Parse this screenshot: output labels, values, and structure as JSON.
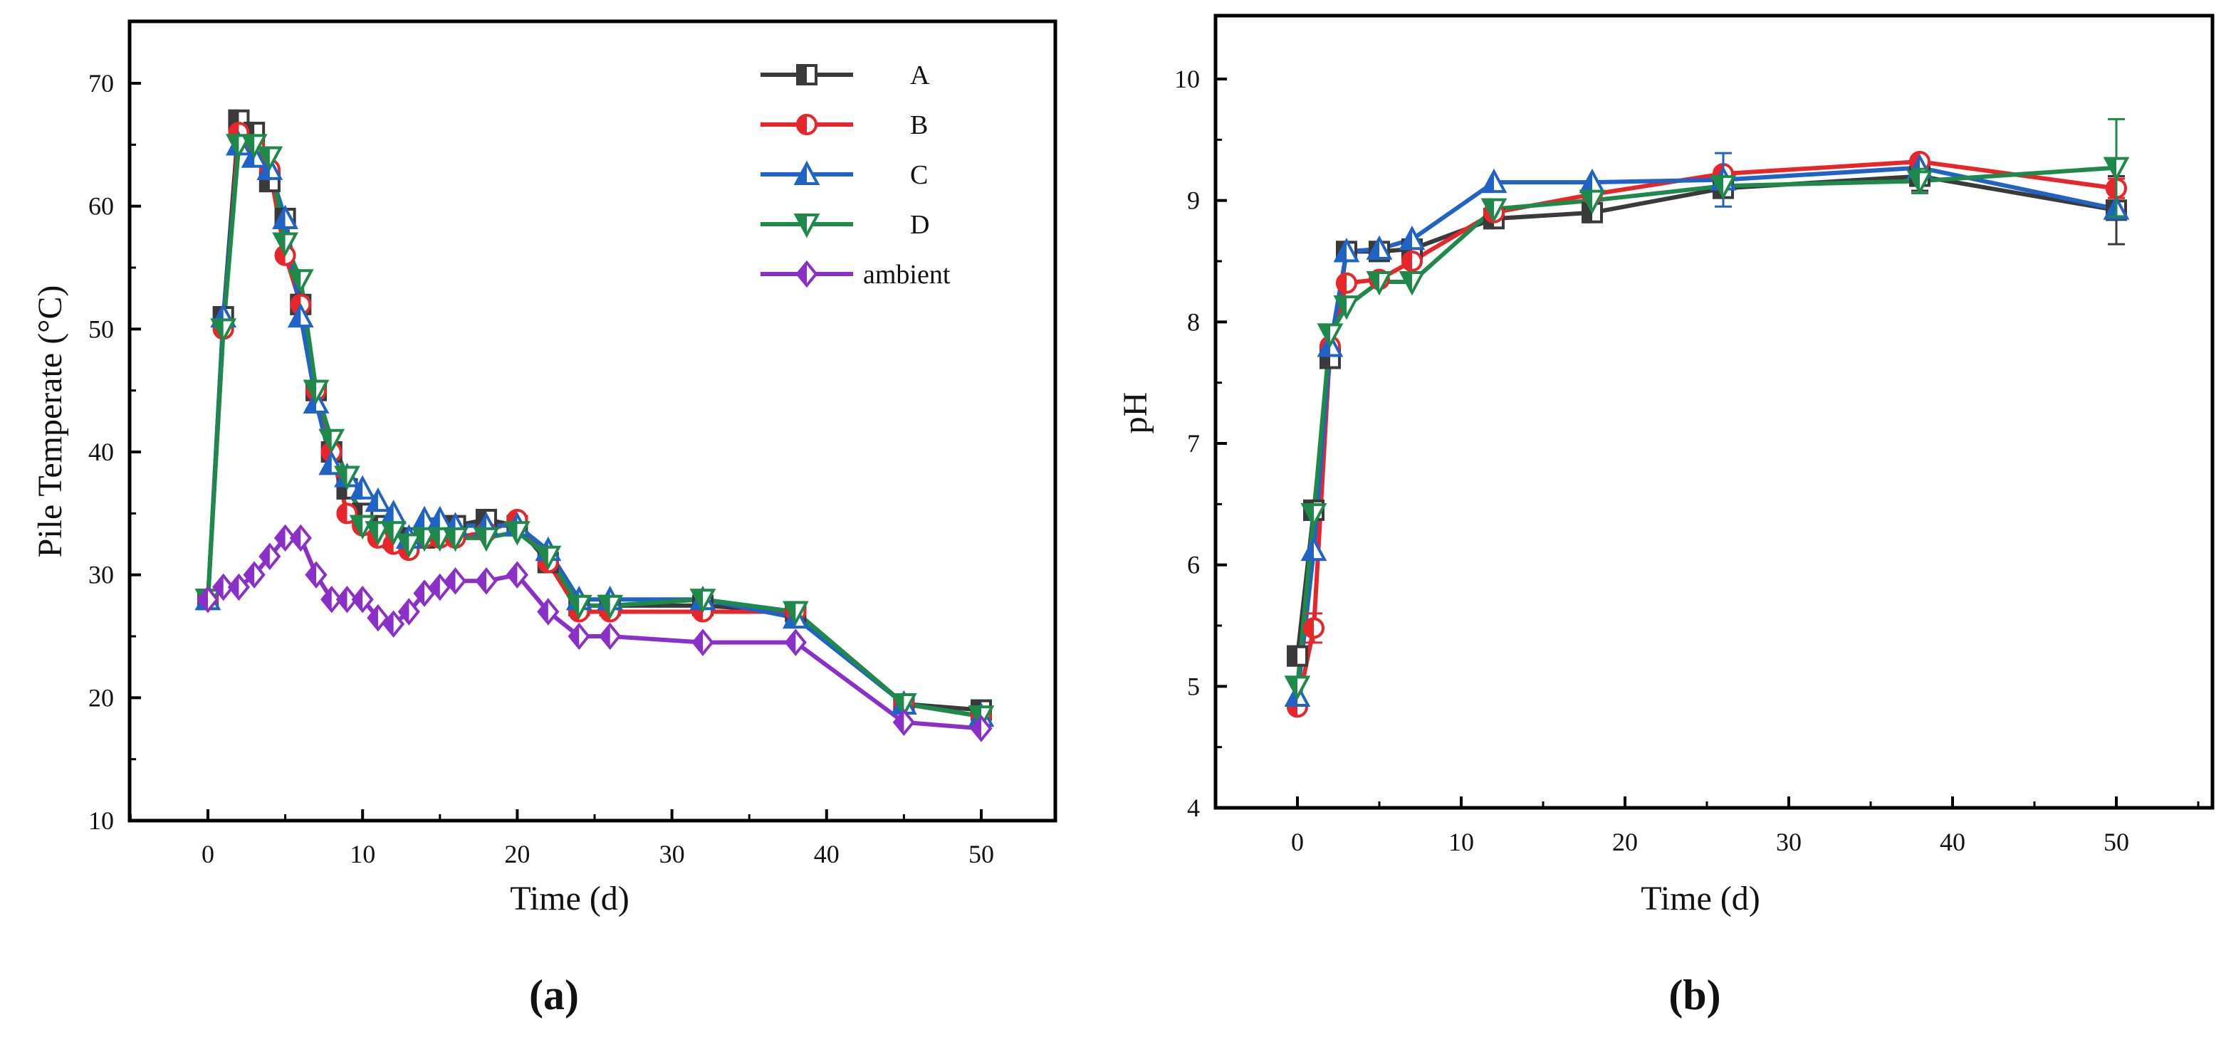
{
  "figure": {
    "label_a": "(a)",
    "label_b": "(b)"
  },
  "chart_data": [
    {
      "id": "a",
      "type": "line",
      "title": "",
      "xlabel": "Time (d)",
      "ylabel": "Pile Temperate (°C)",
      "xlim": [
        -5,
        55
      ],
      "ylim": [
        10,
        75
      ],
      "xticks": [
        "0",
        "10",
        "20",
        "30",
        "40",
        "50"
      ],
      "yticks": [
        "10",
        "20",
        "30",
        "40",
        "50",
        "60",
        "70"
      ],
      "legend_position": "top-right",
      "series": [
        {
          "name": "A",
          "color": "#3a3a3a",
          "marker": "square",
          "x": [
            0,
            1,
            2,
            3,
            4,
            5,
            6,
            7,
            8,
            9,
            10,
            11,
            12,
            13,
            14,
            15,
            16,
            18,
            20,
            22,
            24,
            26,
            32,
            38,
            45,
            50
          ],
          "y": [
            28,
            51,
            67,
            66,
            62,
            59,
            52,
            45,
            40,
            37,
            35,
            34,
            33,
            33,
            33,
            33.5,
            34,
            34.5,
            34,
            31,
            27.5,
            27.5,
            27.5,
            27,
            19.5,
            19
          ]
        },
        {
          "name": "B",
          "color": "#e8262a",
          "marker": "circle",
          "x": [
            0,
            1,
            2,
            3,
            4,
            5,
            6,
            7,
            8,
            9,
            10,
            11,
            12,
            13,
            14,
            15,
            16,
            18,
            20,
            22,
            24,
            26,
            32,
            38,
            45,
            50
          ],
          "y": [
            28,
            50,
            66,
            65,
            63,
            56,
            52,
            45,
            40,
            35,
            34,
            33,
            32.5,
            32,
            33,
            33,
            33,
            33.5,
            34.5,
            31,
            27,
            27,
            27,
            27,
            19.5,
            18.5
          ]
        },
        {
          "name": "C",
          "color": "#1f63c6",
          "marker": "triangle-up",
          "x": [
            0,
            1,
            2,
            3,
            4,
            5,
            6,
            7,
            8,
            9,
            10,
            11,
            12,
            13,
            14,
            15,
            16,
            18,
            20,
            22,
            24,
            26,
            32,
            38,
            45,
            50
          ],
          "y": [
            28,
            51,
            65,
            64,
            63,
            59,
            51,
            44,
            39,
            38,
            37,
            36,
            35,
            33,
            34.5,
            34.5,
            34,
            34,
            34,
            32,
            28,
            28,
            28,
            26.5,
            19.5,
            18.5
          ]
        },
        {
          "name": "D",
          "color": "#1e8a4a",
          "marker": "triangle-down",
          "x": [
            0,
            1,
            2,
            3,
            4,
            5,
            6,
            7,
            8,
            9,
            10,
            11,
            12,
            13,
            14,
            15,
            16,
            18,
            20,
            22,
            24,
            26,
            32,
            38,
            45,
            50
          ],
          "y": [
            28,
            50,
            65,
            65,
            64,
            57,
            54,
            45,
            41,
            38,
            34,
            33.5,
            33.5,
            32.5,
            33,
            33,
            33,
            33,
            33.5,
            31.5,
            27.5,
            27.5,
            28,
            27,
            19.5,
            18.5
          ]
        },
        {
          "name": "ambient",
          "color": "#8b2fc9",
          "marker": "diamond",
          "x": [
            0,
            1,
            2,
            3,
            4,
            5,
            6,
            7,
            8,
            9,
            10,
            11,
            12,
            13,
            14,
            15,
            16,
            18,
            20,
            22,
            24,
            26,
            32,
            38,
            45,
            50
          ],
          "y": [
            28,
            29,
            29,
            30,
            31.5,
            33,
            33,
            30,
            28,
            28,
            28,
            26.5,
            26,
            27,
            28.5,
            29,
            29.5,
            29.5,
            30,
            27,
            25,
            25,
            24.5,
            24.5,
            18,
            17.5
          ]
        }
      ]
    },
    {
      "id": "b",
      "type": "line",
      "title": "",
      "xlabel": "Time (d)",
      "ylabel": "pH",
      "xlim": [
        -5,
        55
      ],
      "ylim": [
        4,
        10.5
      ],
      "xticks": [
        "0",
        "10",
        "20",
        "30",
        "40",
        "50"
      ],
      "yticks": [
        "4",
        "5",
        "6",
        "7",
        "8",
        "9",
        "10"
      ],
      "series": [
        {
          "name": "A",
          "color": "#3a3a3a",
          "marker": "square",
          "x": [
            0,
            1,
            2,
            3,
            5,
            7,
            12,
            18,
            26,
            38,
            50
          ],
          "y": [
            5.25,
            6.45,
            7.7,
            8.58,
            8.58,
            8.6,
            8.85,
            8.9,
            9.1,
            9.2,
            8.92
          ],
          "err": [
            0,
            0,
            0,
            0,
            0,
            0,
            0,
            0,
            0,
            0.12,
            0.28
          ]
        },
        {
          "name": "B",
          "color": "#e8262a",
          "marker": "circle",
          "x": [
            0,
            1,
            2,
            3,
            5,
            7,
            12,
            18,
            26,
            38,
            50
          ],
          "y": [
            4.83,
            5.48,
            7.8,
            8.32,
            8.35,
            8.5,
            8.9,
            9.05,
            9.22,
            9.32,
            9.1
          ],
          "err": [
            0,
            0.12,
            0,
            0,
            0,
            0,
            0,
            0,
            0,
            0,
            0.08
          ]
        },
        {
          "name": "C",
          "color": "#1f63c6",
          "marker": "triangle-up",
          "x": [
            0,
            1,
            2,
            3,
            5,
            7,
            12,
            18,
            26,
            38,
            50
          ],
          "y": [
            4.92,
            6.12,
            7.8,
            8.58,
            8.6,
            8.68,
            9.15,
            9.15,
            9.17,
            9.27,
            8.93
          ],
          "err": [
            0,
            0,
            0,
            0,
            0,
            0,
            0,
            0,
            0.22,
            0,
            0
          ]
        },
        {
          "name": "D",
          "color": "#1e8a4a",
          "marker": "triangle-down",
          "x": [
            0,
            1,
            2,
            3,
            5,
            7,
            12,
            18,
            26,
            38,
            50
          ],
          "y": [
            5.0,
            6.42,
            7.9,
            8.13,
            8.33,
            8.33,
            8.93,
            9.0,
            9.12,
            9.16,
            9.27
          ],
          "err": [
            0,
            0,
            0,
            0,
            0,
            0,
            0,
            0,
            0,
            0.1,
            0.4
          ]
        }
      ]
    }
  ]
}
